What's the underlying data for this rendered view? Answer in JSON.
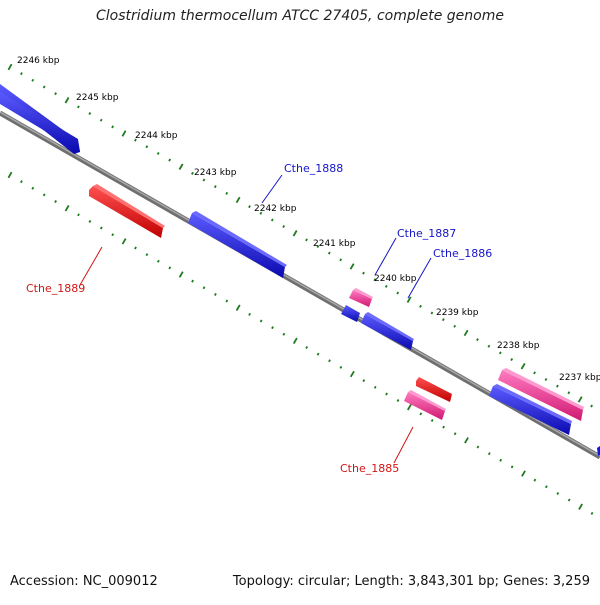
{
  "title": "Clostridium thermocellum ATCC 27405, complete genome",
  "footer": {
    "accession": "Accession: NC_009012",
    "summary": "Topology: circular; Length: 3,843,301 bp; Genes: 3,259"
  },
  "colors": {
    "forward_gene": "#1414e6",
    "reverse_gene": "#ee1010",
    "pink_gene": "#ee2a8a",
    "backbone": "#808080",
    "tick": "#1f7a1f",
    "label_blue": "#1515c8",
    "label_red": "#d01515"
  },
  "ticks": [
    "2246 kbp",
    "2245 kbp",
    "2244 kbp",
    "2243 kbp",
    "2242 kbp",
    "2241 kbp",
    "2240 kbp",
    "2239 kbp",
    "2238 kbp",
    "2237 kbp"
  ],
  "gene_labels": [
    {
      "name": "Cthe_1888",
      "color": "label_blue"
    },
    {
      "name": "Cthe_1887",
      "color": "label_blue"
    },
    {
      "name": "Cthe_1886",
      "color": "label_blue"
    },
    {
      "name": "Cthe_1889",
      "color": "label_red"
    },
    {
      "name": "Cthe_1885",
      "color": "label_red"
    }
  ]
}
